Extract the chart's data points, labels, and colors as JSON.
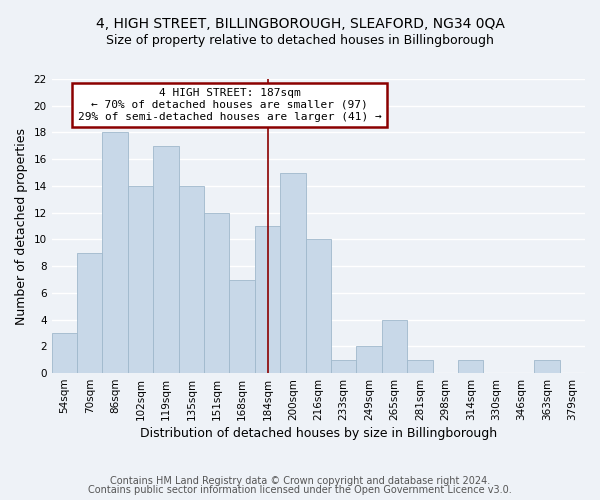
{
  "title": "4, HIGH STREET, BILLINGBOROUGH, SLEAFORD, NG34 0QA",
  "subtitle": "Size of property relative to detached houses in Billingborough",
  "xlabel": "Distribution of detached houses by size in Billingborough",
  "ylabel": "Number of detached properties",
  "categories": [
    "54sqm",
    "70sqm",
    "86sqm",
    "102sqm",
    "119sqm",
    "135sqm",
    "151sqm",
    "168sqm",
    "184sqm",
    "200sqm",
    "216sqm",
    "233sqm",
    "249sqm",
    "265sqm",
    "281sqm",
    "298sqm",
    "314sqm",
    "330sqm",
    "346sqm",
    "363sqm",
    "379sqm"
  ],
  "values": [
    3,
    9,
    18,
    14,
    17,
    14,
    12,
    7,
    11,
    15,
    10,
    1,
    2,
    4,
    1,
    0,
    1,
    0,
    0,
    1,
    0
  ],
  "bar_color": "#c8d8e8",
  "bar_edge_color": "#a0b8cc",
  "highlight_index": 8,
  "highlight_line_color": "#8b0000",
  "annotation_line1": "4 HIGH STREET: 187sqm",
  "annotation_line2": "← 70% of detached houses are smaller (97)",
  "annotation_line3": "29% of semi-detached houses are larger (41) →",
  "annotation_box_edge_color": "#8b0000",
  "annotation_box_bg": "#ffffff",
  "ylim": [
    0,
    22
  ],
  "yticks": [
    0,
    2,
    4,
    6,
    8,
    10,
    12,
    14,
    16,
    18,
    20,
    22
  ],
  "footer_line1": "Contains HM Land Registry data © Crown copyright and database right 2024.",
  "footer_line2": "Contains public sector information licensed under the Open Government Licence v3.0.",
  "bg_color": "#eef2f7",
  "grid_color": "#ffffff",
  "title_fontsize": 10,
  "subtitle_fontsize": 9,
  "axis_label_fontsize": 9,
  "tick_fontsize": 7.5,
  "footer_fontsize": 7,
  "annotation_fontsize": 8
}
